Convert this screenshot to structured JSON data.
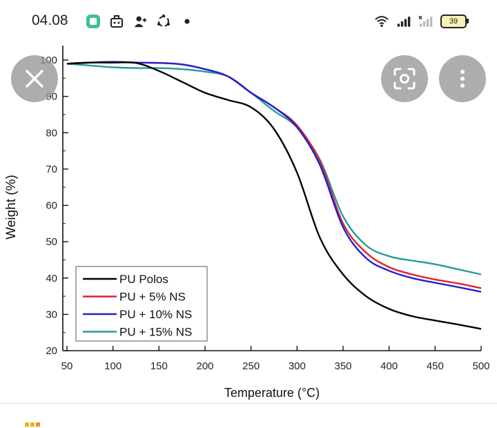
{
  "status_bar": {
    "time": "04.08",
    "battery": "39",
    "icons": [
      "app-icon",
      "briefcase-icon",
      "person-add-icon",
      "sync-icon",
      "dot-icon",
      "wifi-icon",
      "signal-icon",
      "signal-off-icon",
      "battery-icon"
    ]
  },
  "overlay": {
    "close_icon": "close-icon",
    "lens_icon": "lens-scan-icon",
    "menu_icon": "more-vert-icon"
  },
  "colors": {
    "PU Polos": "#000000",
    "PU + 5% NS": "#e0202a",
    "PU + 10% NS": "#2020d0",
    "PU + 15% NS": "#259a98"
  },
  "chart_data": {
    "type": "line",
    "title": "",
    "xlabel": "Temperature (°C)",
    "ylabel": "Weight (%)",
    "xlim": [
      50,
      500
    ],
    "ylim": [
      20,
      100
    ],
    "xticks": [
      "50",
      "100",
      "150",
      "200",
      "250",
      "300",
      "350",
      "400",
      "450",
      "500"
    ],
    "yticks": [
      "20",
      "30",
      "40",
      "50",
      "60",
      "70",
      "80",
      "90",
      "100"
    ],
    "grid": false,
    "legend": "bottom-left",
    "x": [
      50,
      75,
      100,
      125,
      150,
      175,
      200,
      225,
      250,
      275,
      300,
      325,
      350,
      375,
      400,
      425,
      450,
      475,
      500
    ],
    "series": [
      {
        "name": "PU Polos",
        "values": [
          99,
          99.3,
          99.3,
          99.2,
          97,
          94,
          91,
          89,
          87,
          81,
          69,
          51,
          41,
          35,
          31.5,
          29.5,
          28.3,
          27.2,
          26
        ]
      },
      {
        "name": "PU + 5% NS",
        "values": [
          99,
          99.3,
          99.5,
          99.3,
          99.2,
          98.8,
          97.5,
          95.5,
          91,
          87,
          82,
          72,
          55,
          47,
          43,
          41,
          39.6,
          38.5,
          37.2
        ]
      },
      {
        "name": "PU + 10% NS",
        "values": [
          99,
          99.3,
          99.5,
          99.3,
          99.2,
          98.8,
          97.5,
          95.5,
          91,
          87,
          81.5,
          71,
          54,
          45.5,
          42,
          40,
          38.7,
          37.5,
          36.2
        ]
      },
      {
        "name": "PU + 15% NS",
        "values": [
          99,
          98.5,
          98,
          97.8,
          97.8,
          97.5,
          96.8,
          95.5,
          91,
          86,
          81.5,
          72.5,
          57,
          49,
          46,
          44.8,
          43.8,
          42.4,
          41
        ]
      }
    ]
  }
}
